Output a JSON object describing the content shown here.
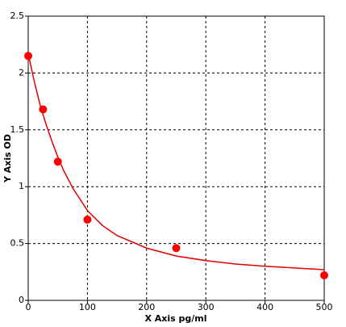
{
  "chart_data": {
    "type": "scatter",
    "x_label": "X Axis pg/ml",
    "y_label": "Y Axis OD",
    "x": [
      0,
      25,
      50,
      100,
      250,
      500
    ],
    "values": [
      2.15,
      1.68,
      1.22,
      0.71,
      0.46,
      0.22
    ],
    "color": "#ff0000",
    "curve": {
      "x": [
        0,
        10,
        20,
        30,
        40,
        50,
        60,
        75,
        100,
        125,
        150,
        200,
        250,
        300,
        350,
        400,
        450,
        500
      ],
      "values": [
        2.17,
        1.93,
        1.72,
        1.55,
        1.4,
        1.26,
        1.14,
        0.99,
        0.79,
        0.66,
        0.57,
        0.46,
        0.39,
        0.35,
        0.32,
        0.3,
        0.285,
        0.27
      ],
      "color": "#e00000"
    },
    "xlim": [
      0,
      500
    ],
    "xticks": [
      0,
      100,
      200,
      300,
      400,
      500
    ],
    "ylim": [
      0,
      2.5
    ],
    "yticks": [
      0,
      0.5,
      1,
      1.5,
      2,
      2.5
    ],
    "grid": true
  }
}
